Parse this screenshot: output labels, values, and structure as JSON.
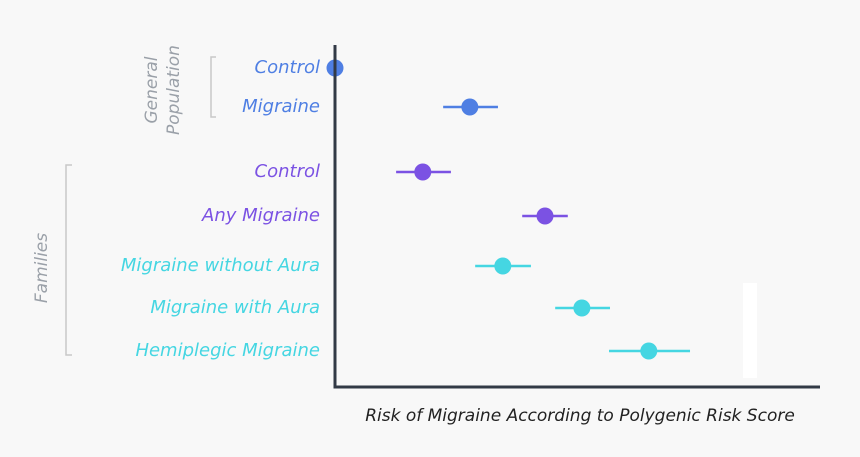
{
  "chart_data": {
    "type": "forest",
    "x_label": "Risk of Migraine According to Polygenic Risk Score",
    "categories": [
      "Control",
      "Migraine",
      "Control",
      "Any Migraine",
      "Migraine without Aura",
      "Migraine with Aura",
      "Hemiplegic Migraine"
    ],
    "values": [
      0,
      27.8,
      18.1,
      43.3,
      34.6,
      50.9,
      64.7
    ],
    "low": [
      null,
      22.3,
      12.6,
      38.6,
      28.9,
      45.4,
      56.5
    ],
    "high": [
      null,
      33.6,
      23.9,
      48.0,
      40.4,
      56.7,
      73.2
    ],
    "colors": [
      "#4f7fe3",
      "#4f7fe3",
      "#7b52e3",
      "#7b52e3",
      "#45d6e2",
      "#45d6e2",
      "#45d6e2"
    ],
    "groups": [
      {
        "label": [
          "General",
          "Population"
        ]
      },
      {
        "label": [
          "Families"
        ]
      }
    ],
    "xlim": [
      0,
      100
    ]
  }
}
